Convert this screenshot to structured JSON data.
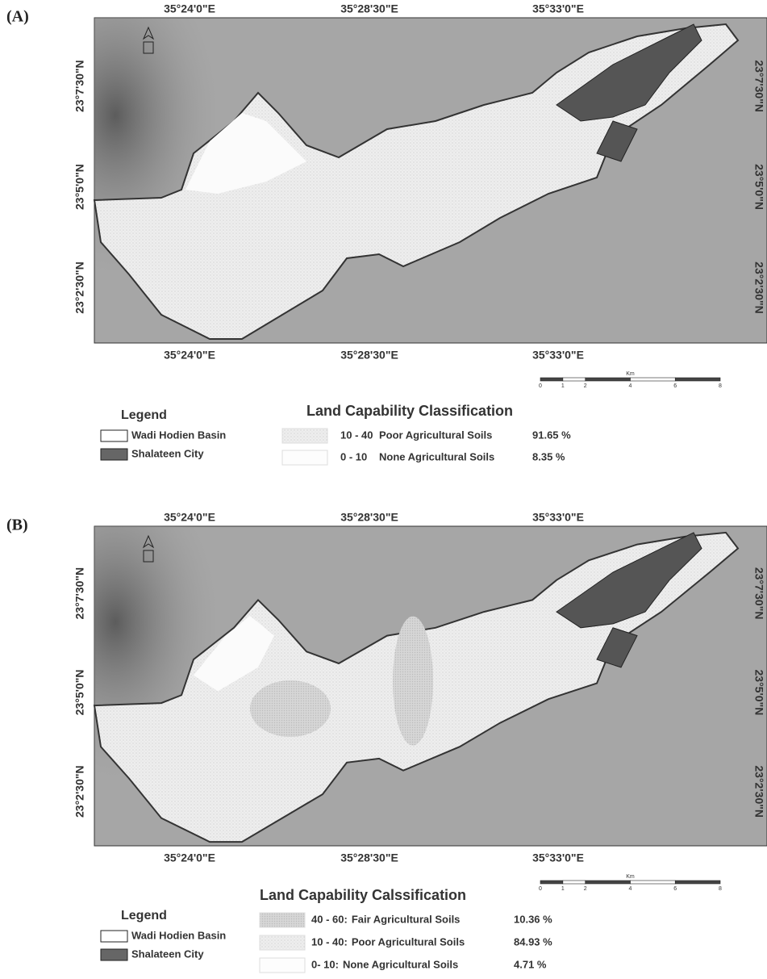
{
  "panels": [
    {
      "label": "(A)",
      "top_lon": [
        "35°24'0\"E",
        "35°28'30\"E",
        "35°33'0\"E"
      ],
      "bottom_lon": [
        "35°24'0\"E",
        "35°28'30\"E",
        "35°33'0\"E"
      ],
      "left_lat": [
        "23°7'30\"N",
        "23°5'0\"N",
        "23°2'30\"N"
      ],
      "right_lat": [
        "23°7'30\"N",
        "23°5'0\"N",
        "23°2'30\"N"
      ],
      "scale": {
        "unit": "Km",
        "ticks": [
          0,
          1,
          2,
          4,
          6,
          8
        ]
      },
      "legend": {
        "title": "Legend",
        "items": [
          "Wadi Hodien Basin",
          "Shalateen City"
        ]
      },
      "classification": {
        "title": "Land Capability Classification",
        "classes": [
          {
            "range": "10 - 40",
            "name": "Poor Agricultural Soils",
            "percent": "91.65 %"
          },
          {
            "range": "0 - 10",
            "name": "None Agricultural Soils",
            "percent": "8.35 %"
          }
        ]
      }
    },
    {
      "label": "(B)",
      "top_lon": [
        "35°24'0\"E",
        "35°28'30\"E",
        "35°33'0\"E"
      ],
      "bottom_lon": [
        "35°24'0\"E",
        "35°28'30\"E",
        "35°33'0\"E"
      ],
      "left_lat": [
        "23°7'30\"N",
        "23°5'0\"N",
        "23°2'30\"N"
      ],
      "right_lat": [
        "23°7'30\"N",
        "23°5'0\"N",
        "23°2'30\"N"
      ],
      "scale": {
        "unit": "Km",
        "ticks": [
          0,
          1,
          2,
          4,
          6,
          8
        ]
      },
      "legend": {
        "title": "Legend",
        "items": [
          "Wadi Hodien Basin",
          "Shalateen City"
        ]
      },
      "classification": {
        "title": "Land Capability Calssification",
        "classes": [
          {
            "range": "40 - 60:",
            "name": "Fair Agricultural Soils",
            "percent": "10.36 %"
          },
          {
            "range": "10 - 40:",
            "name": "Poor Agricultural Soils",
            "percent": "84.93 %"
          },
          {
            "range": "0- 10:",
            "name": "None Agricultural Soils",
            "percent": "4.71 %"
          }
        ]
      }
    }
  ]
}
